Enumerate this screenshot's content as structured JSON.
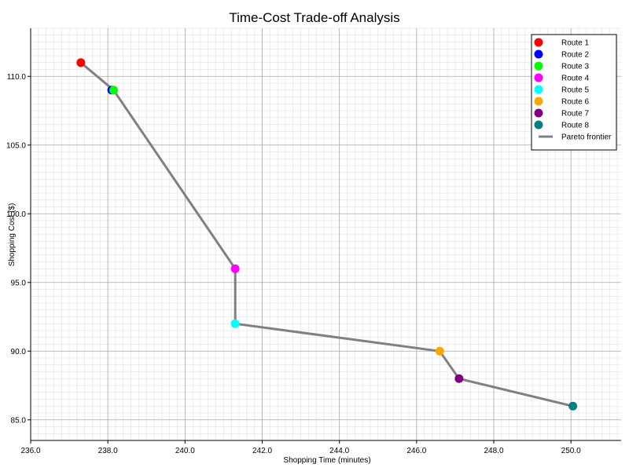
{
  "chart_data": {
    "type": "scatter",
    "title": "Time-Cost Trade-off Analysis",
    "xlabel": "Shopping Time (minutes)",
    "ylabel": "Shopping Cost ($)",
    "xlim": [
      236.0,
      251.3
    ],
    "ylim": [
      83.5,
      113.5
    ],
    "x_ticks": [
      "236.0",
      "238.0",
      "240.0",
      "242.0",
      "244.0",
      "246.0",
      "248.0",
      "250.0"
    ],
    "y_ticks": [
      "85.0",
      "90.0",
      "95.0",
      "100.0",
      "105.0",
      "110.0"
    ],
    "grid": "on (major and minor)",
    "legend_position": "top-right",
    "series": [
      {
        "name": "Route 1",
        "x": 237.3,
        "y": 111.0,
        "color": "#ff0000"
      },
      {
        "name": "Route 2",
        "x": 238.1,
        "y": 109.0,
        "color": "#0000ff"
      },
      {
        "name": "Route 3",
        "x": 238.15,
        "y": 109.0,
        "color": "#00ff00"
      },
      {
        "name": "Route 4",
        "x": 241.3,
        "y": 96.0,
        "color": "#ff00ff"
      },
      {
        "name": "Route 5",
        "x": 241.3,
        "y": 92.0,
        "color": "#00ffff"
      },
      {
        "name": "Route 6",
        "x": 246.6,
        "y": 90.0,
        "color": "#ffa500"
      },
      {
        "name": "Route 7",
        "x": 247.1,
        "y": 88.0,
        "color": "#800080"
      },
      {
        "name": "Route 8",
        "x": 250.05,
        "y": 86.0,
        "color": "#008080"
      }
    ],
    "pareto_frontier": {
      "name": "Pareto frontier",
      "color": "#808080",
      "x": [
        237.3,
        238.15,
        241.3,
        241.3,
        246.6,
        247.1,
        250.05
      ],
      "y": [
        111.0,
        109.0,
        96.0,
        92.0,
        90.0,
        88.0,
        86.0
      ]
    }
  }
}
